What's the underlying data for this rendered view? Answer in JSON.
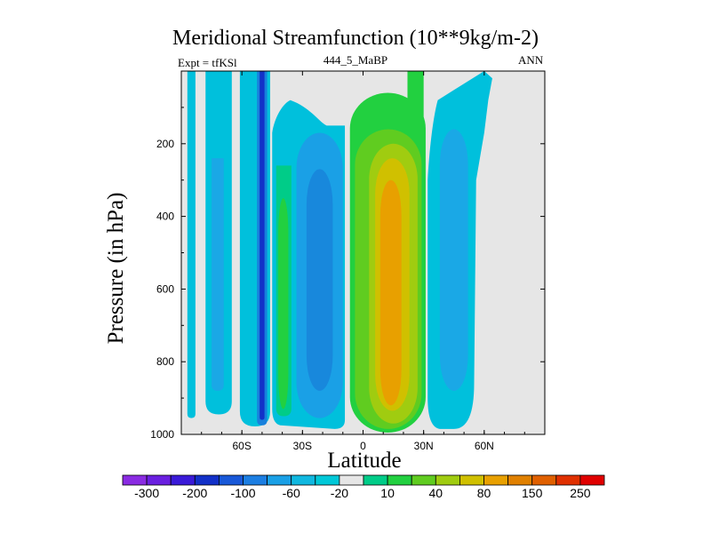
{
  "chart_data": {
    "type": "contour",
    "title": "Meridional Streamfunction (10**9kg/m-2)",
    "left_label": "Expt = tfKSl",
    "center_label": "444_5_MaBP",
    "right_label": "ANN",
    "xlabel": "Latitude",
    "ylabel": "Pressure (in hPa)",
    "xlim": [
      -90,
      90
    ],
    "ylim": [
      1000,
      0
    ],
    "y_ticks": [
      200,
      400,
      600,
      800,
      1000
    ],
    "x_ticks": [
      {
        "value": -60,
        "label": "60S"
      },
      {
        "value": -30,
        "label": "30S"
      },
      {
        "value": 0,
        "label": "0"
      },
      {
        "value": 30,
        "label": "30N"
      },
      {
        "value": 60,
        "label": "60N"
      }
    ],
    "colorbar_labels": [
      "-300",
      "-200",
      "-100",
      "-60",
      "-20",
      "10",
      "40",
      "80",
      "150",
      "250"
    ],
    "colorbar_colors": [
      "#8a2be2",
      "#6a1fe0",
      "#3a1ad8",
      "#1230c8",
      "#1858d8",
      "#1c7ee2",
      "#1aa0e6",
      "#10b8e0",
      "#00c8d8",
      "#e6e6e6",
      "#00cc88",
      "#22d040",
      "#60cc20",
      "#a0cc10",
      "#d0c000",
      "#e8a000",
      "#e08000",
      "#e06000",
      "#e03000",
      "#e00000"
    ],
    "background_color": "#e6e6e6",
    "features": [
      {
        "name": "cell-80S",
        "color": "#00c0dc",
        "x": [
          -87,
          -83
        ],
        "p": [
          0,
          970
        ]
      },
      {
        "name": "cell-70S",
        "color": "#00c0dc",
        "x": [
          -78,
          -65
        ],
        "p": [
          0,
          940
        ]
      },
      {
        "name": "cell-55S",
        "color": "#00c0dc",
        "x": [
          -61,
          -46
        ],
        "p": [
          0,
          975
        ]
      },
      {
        "name": "jet-50S-outer",
        "color": "#1880dc",
        "x": [
          -52,
          -48
        ],
        "p": [
          0,
          975
        ]
      },
      {
        "name": "jet-50S-inner",
        "color": "#1230c8",
        "x": [
          -51,
          -49
        ],
        "p": [
          0,
          960
        ]
      },
      {
        "name": "cell-35S",
        "color": "#00c0dc",
        "x": [
          -45,
          -9
        ],
        "p": [
          110,
          975
        ]
      },
      {
        "name": "cell-35S-green",
        "color": "#00cc88",
        "x": [
          -42,
          -34
        ],
        "p": [
          200,
          940
        ]
      },
      {
        "name": "cell-20S-core",
        "color": "#1a9ee6",
        "x": [
          -32,
          -12
        ],
        "p": [
          170,
          940
        ]
      },
      {
        "name": "cell-NH-tropics",
        "color": "#22d040",
        "x": [
          -6,
          30
        ],
        "p": [
          0,
          975
        ]
      },
      {
        "name": "cell-NH-mid",
        "color": "#00c0dc",
        "x": [
          30,
          65
        ],
        "p": [
          0,
          975
        ]
      }
    ]
  }
}
